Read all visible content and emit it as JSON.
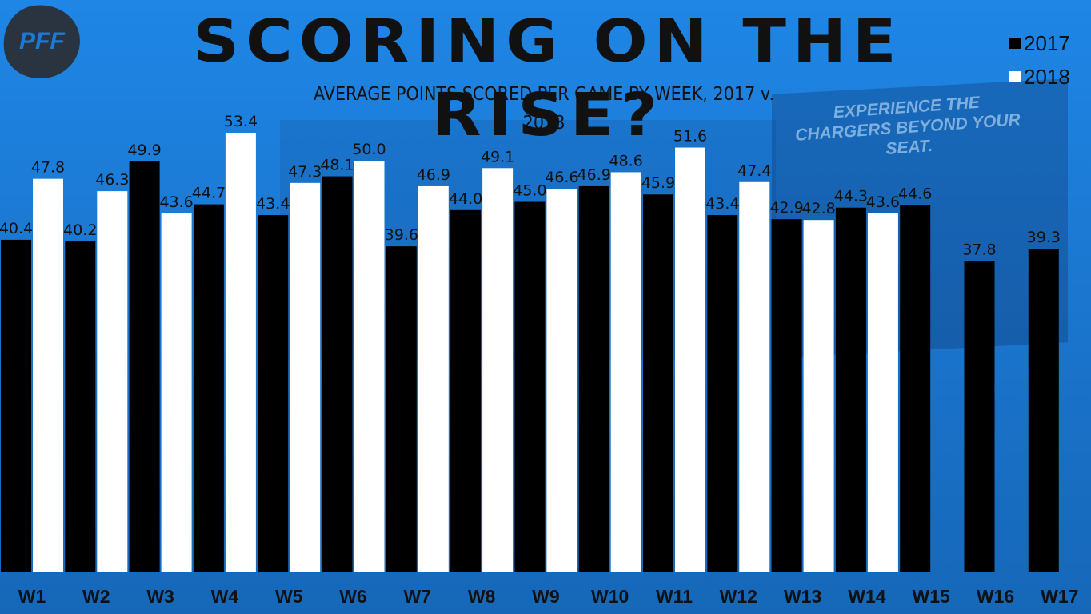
{
  "logo_text": "PFF",
  "background_text": "EXPERIENCE THE CHARGERS BEYOND YOUR SEAT.",
  "chart_data": {
    "type": "bar",
    "title": "SCORING ON THE RISE?",
    "subtitle": "AVERAGE POINTS SCORED PER GAME BY WEEK, 2017 v. 2018",
    "categories": [
      "W1",
      "W2",
      "W3",
      "W4",
      "W5",
      "W6",
      "W7",
      "W8",
      "W9",
      "W10",
      "W11",
      "W12",
      "W13",
      "W14",
      "W15",
      "W16",
      "W17"
    ],
    "series": [
      {
        "name": "2017",
        "color": "#000000",
        "values": [
          40.4,
          40.2,
          49.9,
          44.7,
          43.4,
          48.1,
          39.6,
          44.0,
          45.0,
          46.9,
          45.9,
          43.4,
          42.9,
          44.3,
          44.6,
          37.8,
          39.3
        ]
      },
      {
        "name": "2018",
        "color": "#ffffff",
        "values": [
          47.8,
          46.3,
          43.6,
          53.4,
          47.3,
          50.0,
          46.9,
          49.1,
          46.6,
          48.6,
          51.6,
          47.4,
          42.8,
          43.6,
          null,
          null,
          null
        ]
      }
    ],
    "ylim": [
      0,
      53.4
    ],
    "grid": false,
    "legend": "top-right"
  }
}
